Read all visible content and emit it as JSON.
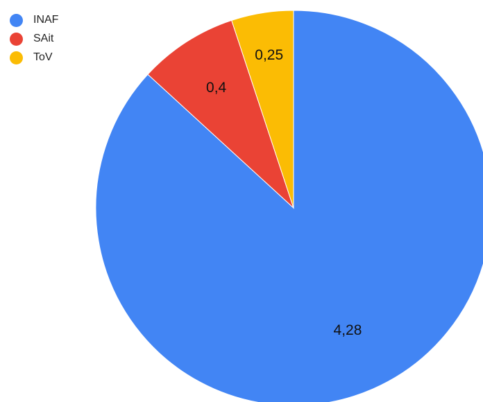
{
  "chart_data": {
    "type": "pie",
    "title": "",
    "legend_position": "top-left",
    "categories": [
      "INAF",
      "SAit",
      "ToV"
    ],
    "values": [
      4.28,
      0.4,
      0.25
    ],
    "value_labels": [
      "4,28",
      "0,4",
      "0,25"
    ],
    "colors": [
      "#4285F4",
      "#EA4335",
      "#FBBC04"
    ],
    "start": "top, clockwise"
  }
}
